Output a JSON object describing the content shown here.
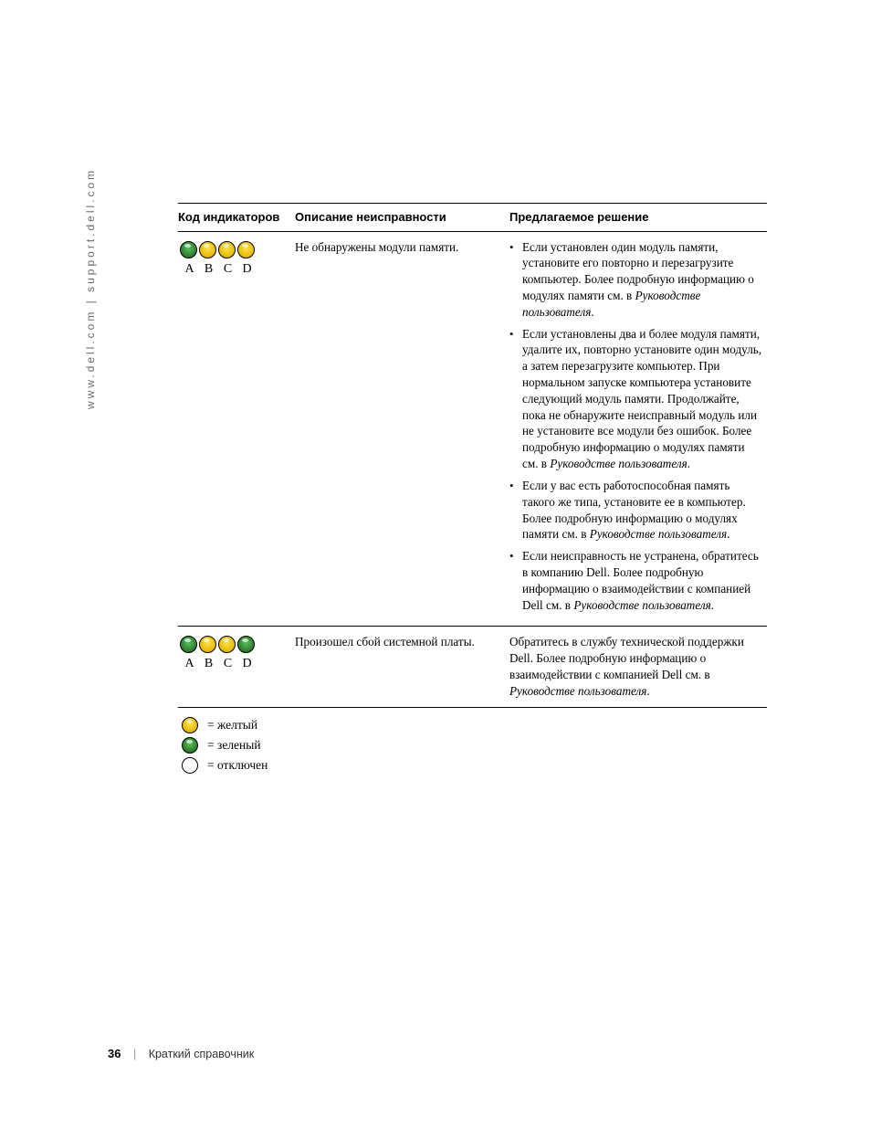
{
  "sidebar": "www.dell.com | support.dell.com",
  "headers": {
    "code": "Код индикаторов",
    "desc": "Описание неисправности",
    "sol": "Предлагаемое решение"
  },
  "rows": [
    {
      "leds": [
        "green",
        "yellow",
        "yellow",
        "yellow"
      ],
      "labels": [
        "A",
        "B",
        "C",
        "D"
      ],
      "desc": "Не обнаружены модули памяти.",
      "sol_items": [
        {
          "pre": "Если установлен один модуль памяти, установите его повторно и перезагрузите компьютер. Более подробную информацию о модулях памяти см. в ",
          "it": "Руководстве пользователя",
          "post": "."
        },
        {
          "pre": "Если установлены два и более модуля памяти, удалите их, повторно установите один модуль, а затем перезагрузите компьютер. При нормальном запуске компьютера установите следующий модуль памяти. Продолжайте, пока не обнаружите неисправный модуль или не установите все модули без ошибок. Более подробную информацию о модулях памяти см. в ",
          "it": "Руководстве пользователя",
          "post": "."
        },
        {
          "pre": "Если у вас есть работоспособная память такого же типа, установите ее в компьютер. Более подробную информацию о модулях памяти см. в ",
          "it": "Руководстве пользователя",
          "post": "."
        },
        {
          "pre": "Если неисправность не устранена, обратитесь в компанию Dell. Более подробную информацию о взаимодействии с компанией Dell см. в ",
          "it": "Руководстве пользователя",
          "post": "."
        }
      ]
    },
    {
      "leds": [
        "green",
        "yellow",
        "yellow",
        "green"
      ],
      "labels": [
        "A",
        "B",
        "C",
        "D"
      ],
      "desc": "Произошел сбой системной платы.",
      "sol_plain": {
        "pre": "Обратитесь в службу технической поддержки Dell. Более подробную информацию о взаимодействии с компанией Dell см. в ",
        "it": "Руководстве пользователя",
        "post": "."
      }
    }
  ],
  "legend": [
    {
      "color": "yellow",
      "label": "= желтый"
    },
    {
      "color": "green",
      "label": "= зеленый"
    },
    {
      "color": "off",
      "label": "= отключен"
    }
  ],
  "footer": {
    "page": "36",
    "title": "Краткий справочник"
  },
  "colors": {
    "green": "#2a7a2a",
    "yellow": "#e6b800",
    "off": "#ffffff",
    "border": "#000000",
    "text": "#000000",
    "sidebar_text": "#6a6a6a"
  }
}
